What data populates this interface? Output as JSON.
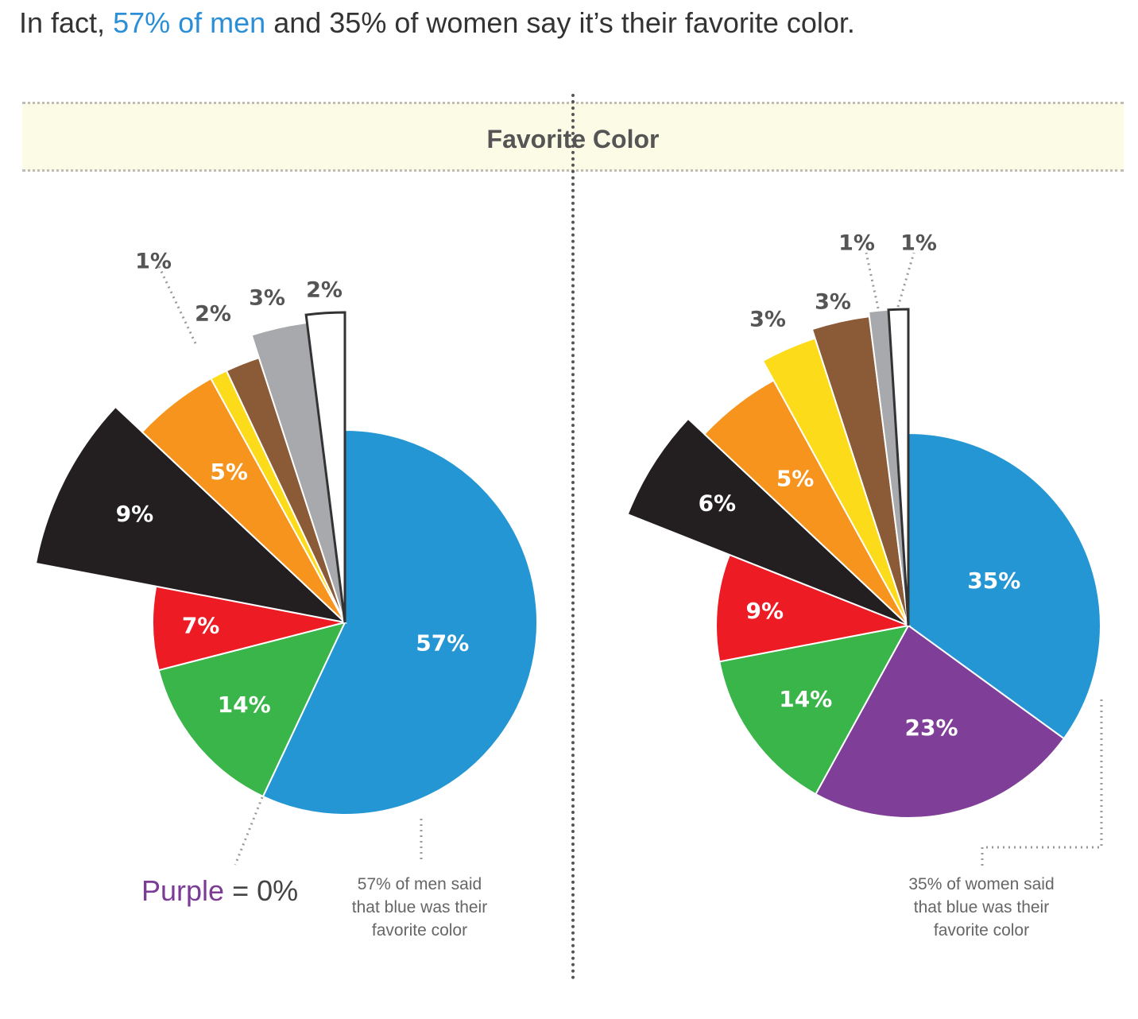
{
  "intro": {
    "prefix": "In fact,",
    "highlight": "57% of men",
    "suffix": "and 35% of women say it’s their favorite color.",
    "highlight_color": "#2a8fd6"
  },
  "banner": {
    "title": "Favorite Color"
  },
  "colors": {
    "blue": "#2596d4",
    "green": "#3ab54a",
    "red": "#ed1c24",
    "black": "#231f20",
    "orange": "#f7941d",
    "yellow": "#fcdc1a",
    "brown": "#8b5a36",
    "gray": "#a7a9ac",
    "white": "#ffffff",
    "purple": "#7f3f98"
  },
  "chart_data": [
    {
      "type": "pie",
      "group": "men",
      "slices": [
        {
          "color_name": "blue",
          "value": 57,
          "label": "57%",
          "label_position": "inside"
        },
        {
          "color_name": "green",
          "value": 14,
          "label": "14%",
          "label_position": "inside"
        },
        {
          "color_name": "red",
          "value": 7,
          "label": "7%",
          "label_position": "inside"
        },
        {
          "color_name": "black",
          "value": 9,
          "label": "9%",
          "label_position": "inside"
        },
        {
          "color_name": "orange",
          "value": 5,
          "label": "5%",
          "label_position": "inside"
        },
        {
          "color_name": "yellow",
          "value": 1,
          "label": "1%",
          "label_position": "outside"
        },
        {
          "color_name": "brown",
          "value": 2,
          "label": "2%",
          "label_position": "outside"
        },
        {
          "color_name": "gray",
          "value": 3,
          "label": "3%",
          "label_position": "outside"
        },
        {
          "color_name": "white",
          "value": 2,
          "label": "2%",
          "label_position": "outside"
        },
        {
          "color_name": "purple",
          "value": 0,
          "label": "0%",
          "label_position": "none"
        }
      ],
      "purple_note": {
        "word": "Purple",
        "rest": "= 0%"
      },
      "note_lines": [
        "57% of men said",
        "that blue was their",
        "favorite color"
      ]
    },
    {
      "type": "pie",
      "group": "women",
      "slices": [
        {
          "color_name": "blue",
          "value": 35,
          "label": "35%",
          "label_position": "inside"
        },
        {
          "color_name": "purple",
          "value": 23,
          "label": "23%",
          "label_position": "inside"
        },
        {
          "color_name": "green",
          "value": 14,
          "label": "14%",
          "label_position": "inside"
        },
        {
          "color_name": "red",
          "value": 9,
          "label": "9%",
          "label_position": "inside"
        },
        {
          "color_name": "black",
          "value": 6,
          "label": "6%",
          "label_position": "inside"
        },
        {
          "color_name": "orange",
          "value": 5,
          "label": "5%",
          "label_position": "inside"
        },
        {
          "color_name": "yellow",
          "value": 3,
          "label": "3%",
          "label_position": "outside"
        },
        {
          "color_name": "brown",
          "value": 3,
          "label": "3%",
          "label_position": "outside"
        },
        {
          "color_name": "gray",
          "value": 1,
          "label": "1%",
          "label_position": "outside"
        },
        {
          "color_name": "white",
          "value": 1,
          "label": "1%",
          "label_position": "outside"
        }
      ],
      "note_lines": [
        "35% of women said",
        "that blue was their",
        "favorite color"
      ]
    }
  ]
}
